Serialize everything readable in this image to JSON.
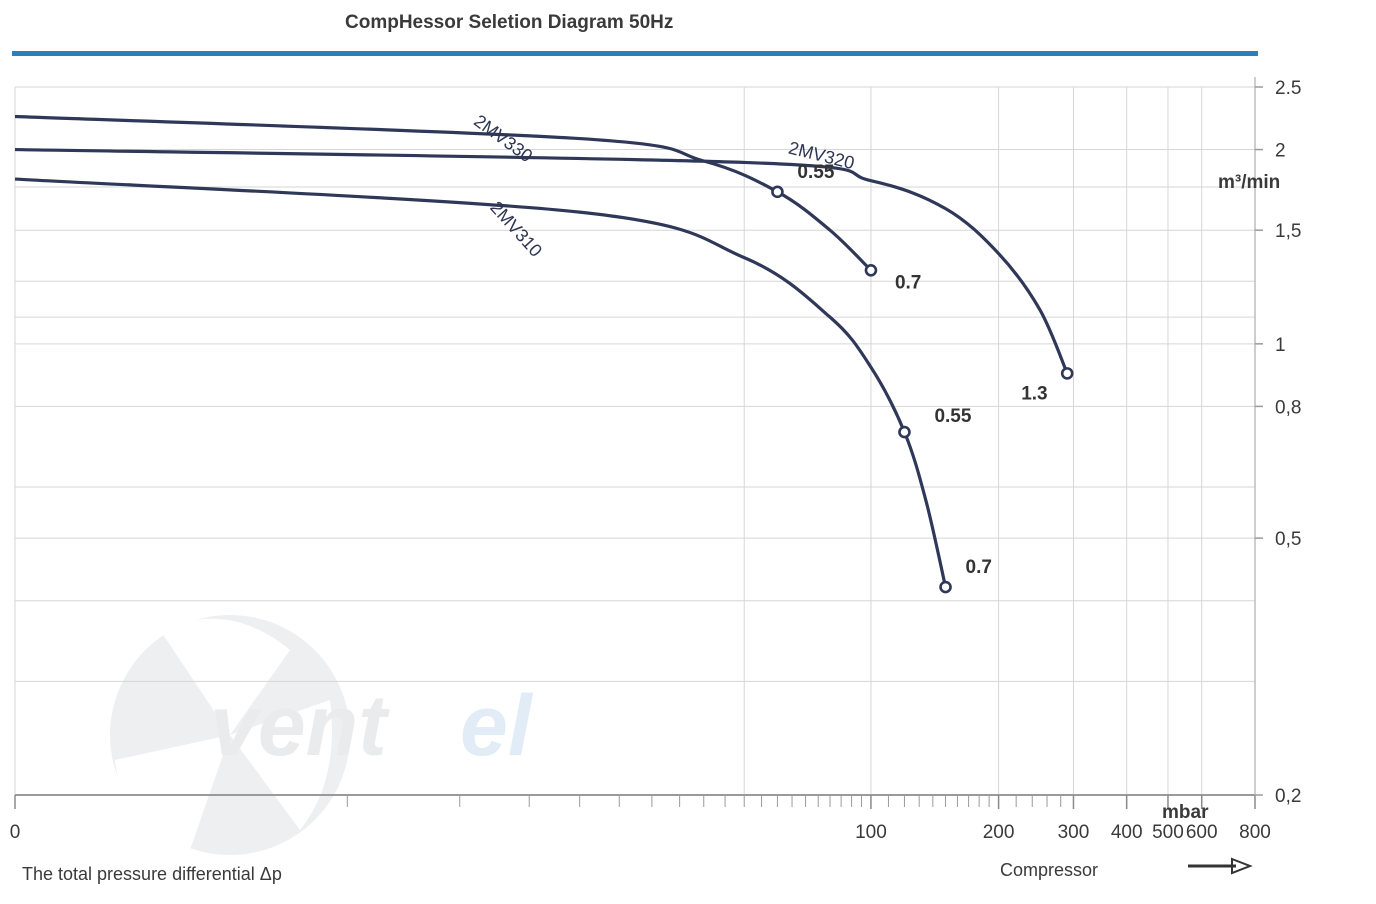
{
  "chart_data": {
    "type": "line",
    "title": "CompHessor Seletion Diagram 50Hz",
    "xlabel": "The total pressure differential Δp",
    "xunit": "mbar",
    "yunit": "m³/min",
    "footer_label": "Compressor",
    "x_scale": "log(1+x)",
    "xlim": [
      0,
      800
    ],
    "ylim": [
      0.2,
      2.5
    ],
    "x_ticks": [
      {
        "value": 0,
        "label": "0"
      },
      {
        "value": 100,
        "label": "100"
      },
      {
        "value": 200,
        "label": "200"
      },
      {
        "value": 300,
        "label": "300"
      },
      {
        "value": 400,
        "label": "400"
      },
      {
        "value": 500,
        "label": "500"
      },
      {
        "value": 600,
        "label": "600"
      },
      {
        "value": 800,
        "label": "800"
      }
    ],
    "y_ticks": [
      {
        "value": 2.5,
        "label": "2.5"
      },
      {
        "value": 2,
        "label": "2"
      },
      {
        "value": 1.5,
        "label": "1,5"
      },
      {
        "value": 1,
        "label": "1"
      },
      {
        "value": 0.8,
        "label": "0,8"
      },
      {
        "value": 0.5,
        "label": "0,5"
      },
      {
        "value": 0.2,
        "label": "0,2"
      }
    ],
    "series": [
      {
        "name": "2MV310",
        "x": [
          0,
          20,
          50,
          80,
          100,
          120,
          135,
          150
        ],
        "y": [
          1.8,
          1.6,
          1.36,
          1.1,
          0.92,
          0.73,
          0.57,
          0.42
        ],
        "points": [
          {
            "x": 120,
            "y": 0.73,
            "label": "0.55"
          },
          {
            "x": 150,
            "y": 0.42,
            "label": "0.7"
          }
        ]
      },
      {
        "name": "2MV330",
        "x": [
          0,
          20,
          40,
          60,
          80,
          100
        ],
        "y": [
          2.25,
          2.08,
          1.92,
          1.72,
          1.5,
          1.3
        ],
        "points": [
          {
            "x": 60,
            "y": 1.72,
            "label": "0.55"
          },
          {
            "x": 100,
            "y": 1.3,
            "label": "0.7"
          }
        ]
      },
      {
        "name": "2MV320",
        "x": [
          0,
          50,
          100,
          150,
          200,
          250,
          290
        ],
        "y": [
          2.0,
          1.91,
          1.79,
          1.62,
          1.38,
          1.13,
          0.9
        ],
        "points": [
          {
            "x": 290,
            "y": 0.9,
            "label": "1.3"
          }
        ]
      }
    ]
  }
}
